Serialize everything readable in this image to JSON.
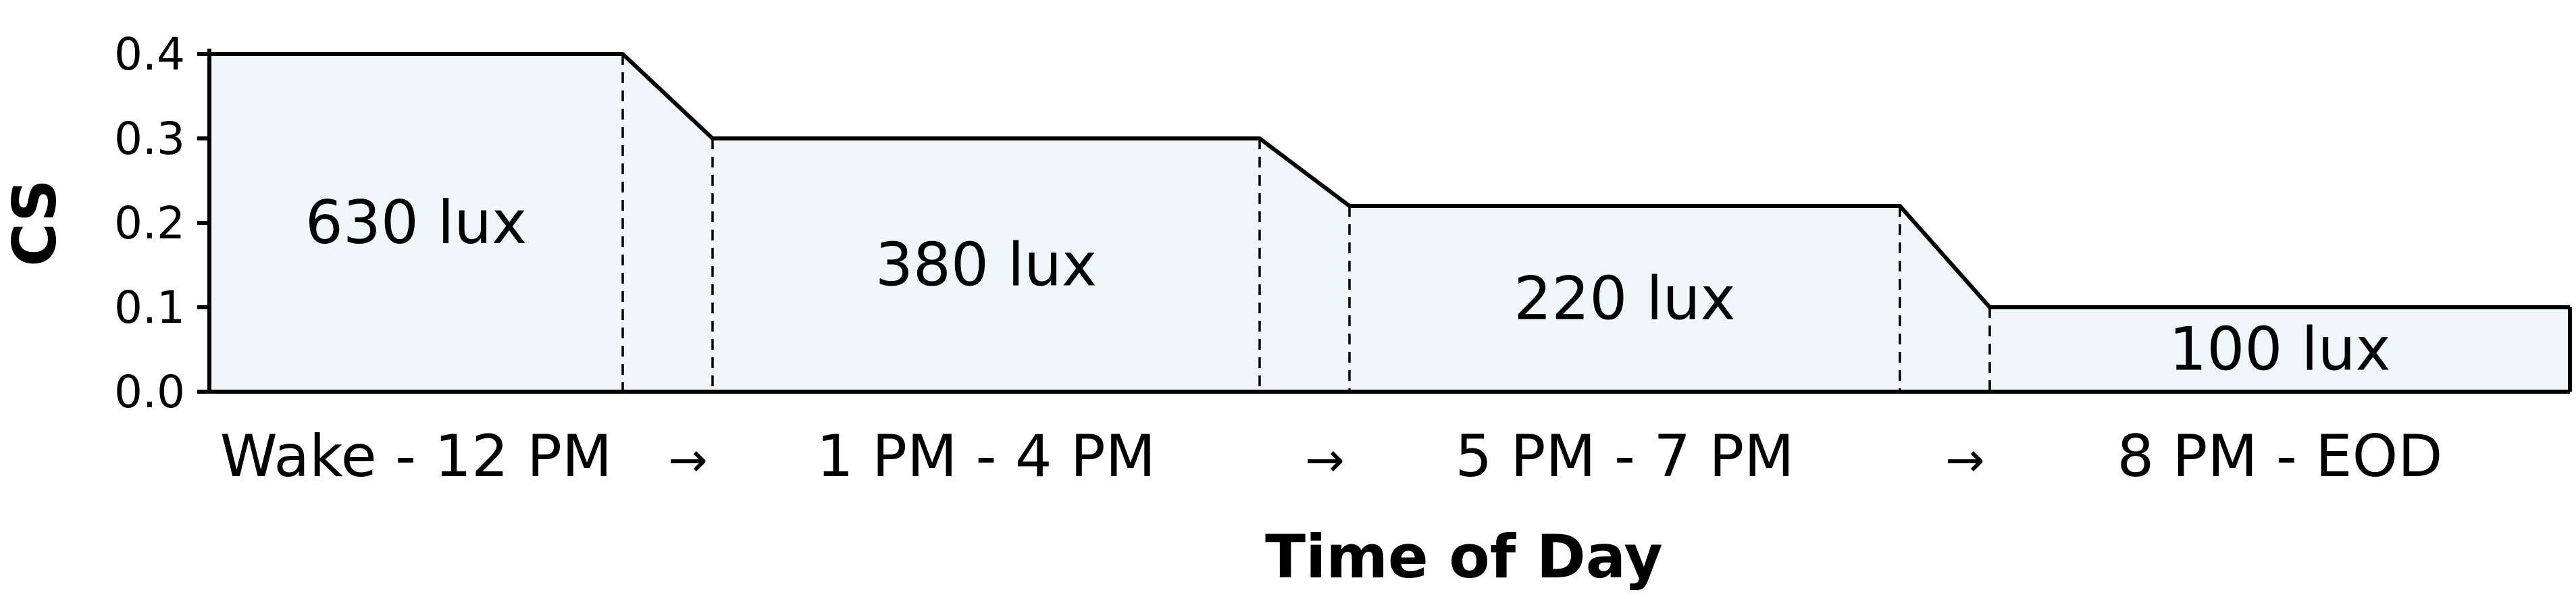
{
  "chart_data": {
    "type": "area",
    "title": "",
    "xlabel": "Time of Day",
    "ylabel": "CS",
    "ylim": [
      0,
      0.4
    ],
    "yticks": [
      "0.0",
      "0.1",
      "0.2",
      "0.3",
      "0.4"
    ],
    "grid": false,
    "legend": "none",
    "fill_color": "#f0f7fb",
    "line_color": "#000000",
    "segments": [
      {
        "period": "Wake - 12 PM",
        "cs": 0.4,
        "lux_label": "630 lux"
      },
      {
        "period": "1 PM - 4 PM",
        "cs": 0.3,
        "lux_label": "380 lux"
      },
      {
        "period": "5 PM - 7 PM",
        "cs": 0.22,
        "lux_label": "220 lux"
      },
      {
        "period": "8 PM - EOD",
        "cs": 0.1,
        "lux_label": "100 lux"
      }
    ],
    "transition_symbol": "→"
  }
}
